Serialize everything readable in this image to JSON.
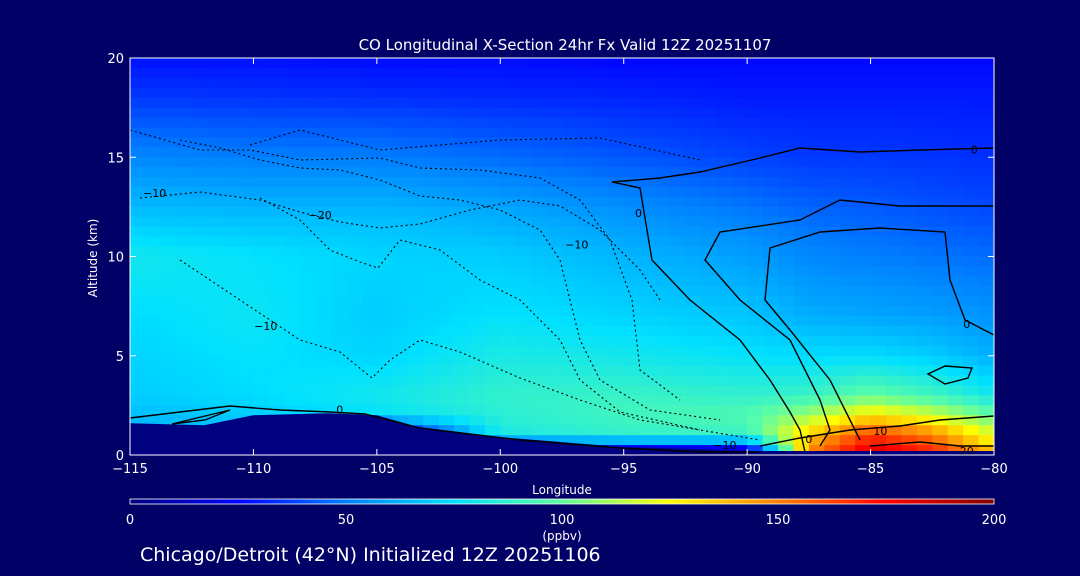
{
  "chart_data": {
    "type": "heatmap",
    "title": "CO Longitudinal X-Section 24hr  Fx Valid 12Z 20251107",
    "xlabel": "Longitude",
    "ylabel": "Altitude (km)",
    "xlim": [
      -115,
      -80
    ],
    "ylim": [
      0,
      20
    ],
    "x_ticks": [
      -115,
      -110,
      -105,
      -100,
      -95,
      -90,
      -85,
      -80
    ],
    "x_tick_labels": [
      "−115",
      "−110",
      "−105",
      "−100",
      "−95",
      "−90",
      "−85",
      "−80"
    ],
    "y_ticks": [
      0,
      5,
      10,
      15,
      20
    ],
    "y_tick_labels": [
      "0",
      "5",
      "10",
      "15",
      "20"
    ],
    "colorbar": {
      "label": "(ppbv)",
      "range": [
        0,
        200
      ],
      "ticks": [
        0,
        50,
        100,
        150,
        200
      ],
      "tick_labels": [
        "0",
        "50",
        "100",
        "150",
        "200"
      ],
      "colors": [
        "#000080",
        "#0000ff",
        "#0080ff",
        "#00e0ff",
        "#60ffa0",
        "#ffff00",
        "#ff8000",
        "#ff0000",
        "#800000"
      ]
    },
    "co_field": {
      "longitudes": [
        -115,
        -110,
        -105,
        -100,
        -95,
        -90,
        -87.5,
        -85,
        -82.5,
        -80
      ],
      "altitudes": [
        0,
        1,
        2,
        3,
        5,
        7,
        10,
        12,
        15,
        18,
        20
      ],
      "values_ppbv": [
        [
          0,
          0,
          0,
          0,
          0,
          0,
          150,
          185,
          170,
          140
        ],
        [
          62,
          64,
          0,
          82,
          88,
          90,
          135,
          165,
          150,
          120
        ],
        [
          66,
          70,
          76,
          86,
          92,
          96,
          110,
          130,
          118,
          100
        ],
        [
          70,
          74,
          80,
          88,
          90,
          88,
          90,
          100,
          92,
          80
        ],
        [
          72,
          76,
          72,
          82,
          80,
          76,
          74,
          74,
          70,
          62
        ],
        [
          74,
          78,
          70,
          76,
          72,
          68,
          62,
          60,
          58,
          55
        ],
        [
          80,
          76,
          72,
          70,
          64,
          58,
          52,
          50,
          48,
          46
        ],
        [
          68,
          66,
          66,
          62,
          56,
          50,
          46,
          44,
          42,
          40
        ],
        [
          52,
          50,
          50,
          46,
          42,
          38,
          36,
          36,
          35,
          34
        ],
        [
          36,
          35,
          34,
          33,
          32,
          30,
          30,
          30,
          30,
          30
        ],
        [
          28,
          28,
          27,
          27,
          26,
          26,
          26,
          26,
          26,
          26
        ]
      ]
    },
    "terrain_km": {
      "longitudes": [
        -115,
        -112,
        -110,
        -107,
        -105,
        -103,
        -100,
        -97,
        -95,
        -92,
        -90,
        -87,
        -85,
        -82,
        -80
      ],
      "altitudes": [
        1.6,
        1.5,
        2.0,
        2.1,
        2.0,
        1.3,
        0.9,
        0.6,
        0.4,
        0.3,
        0.2,
        0.2,
        0.2,
        0.2,
        0.2
      ]
    },
    "contour_labels": [
      {
        "text": "0",
        "lon": -106.5,
        "alt": 2.3
      },
      {
        "text": "−10",
        "lon": -114,
        "alt": 13.2
      },
      {
        "text": "−20",
        "lon": -107.3,
        "alt": 12.1
      },
      {
        "text": "−10",
        "lon": -96.9,
        "alt": 10.6
      },
      {
        "text": "−10",
        "lon": -109.5,
        "alt": 6.5
      },
      {
        "text": "−10",
        "lon": -90.9,
        "alt": 0.5
      },
      {
        "text": "0",
        "lon": -94.4,
        "alt": 12.2
      },
      {
        "text": "0",
        "lon": -80.8,
        "alt": 15.4
      },
      {
        "text": "0",
        "lon": -81.1,
        "alt": 6.6
      },
      {
        "text": "0",
        "lon": -87.5,
        "alt": 0.8
      },
      {
        "text": "10",
        "lon": -84.6,
        "alt": 1.2
      },
      {
        "text": "20",
        "lon": -81.1,
        "alt": 0.2
      }
    ]
  },
  "footer": {
    "caption": "Chicago/Detroit (42°N) Initialized 12Z 20251106"
  }
}
